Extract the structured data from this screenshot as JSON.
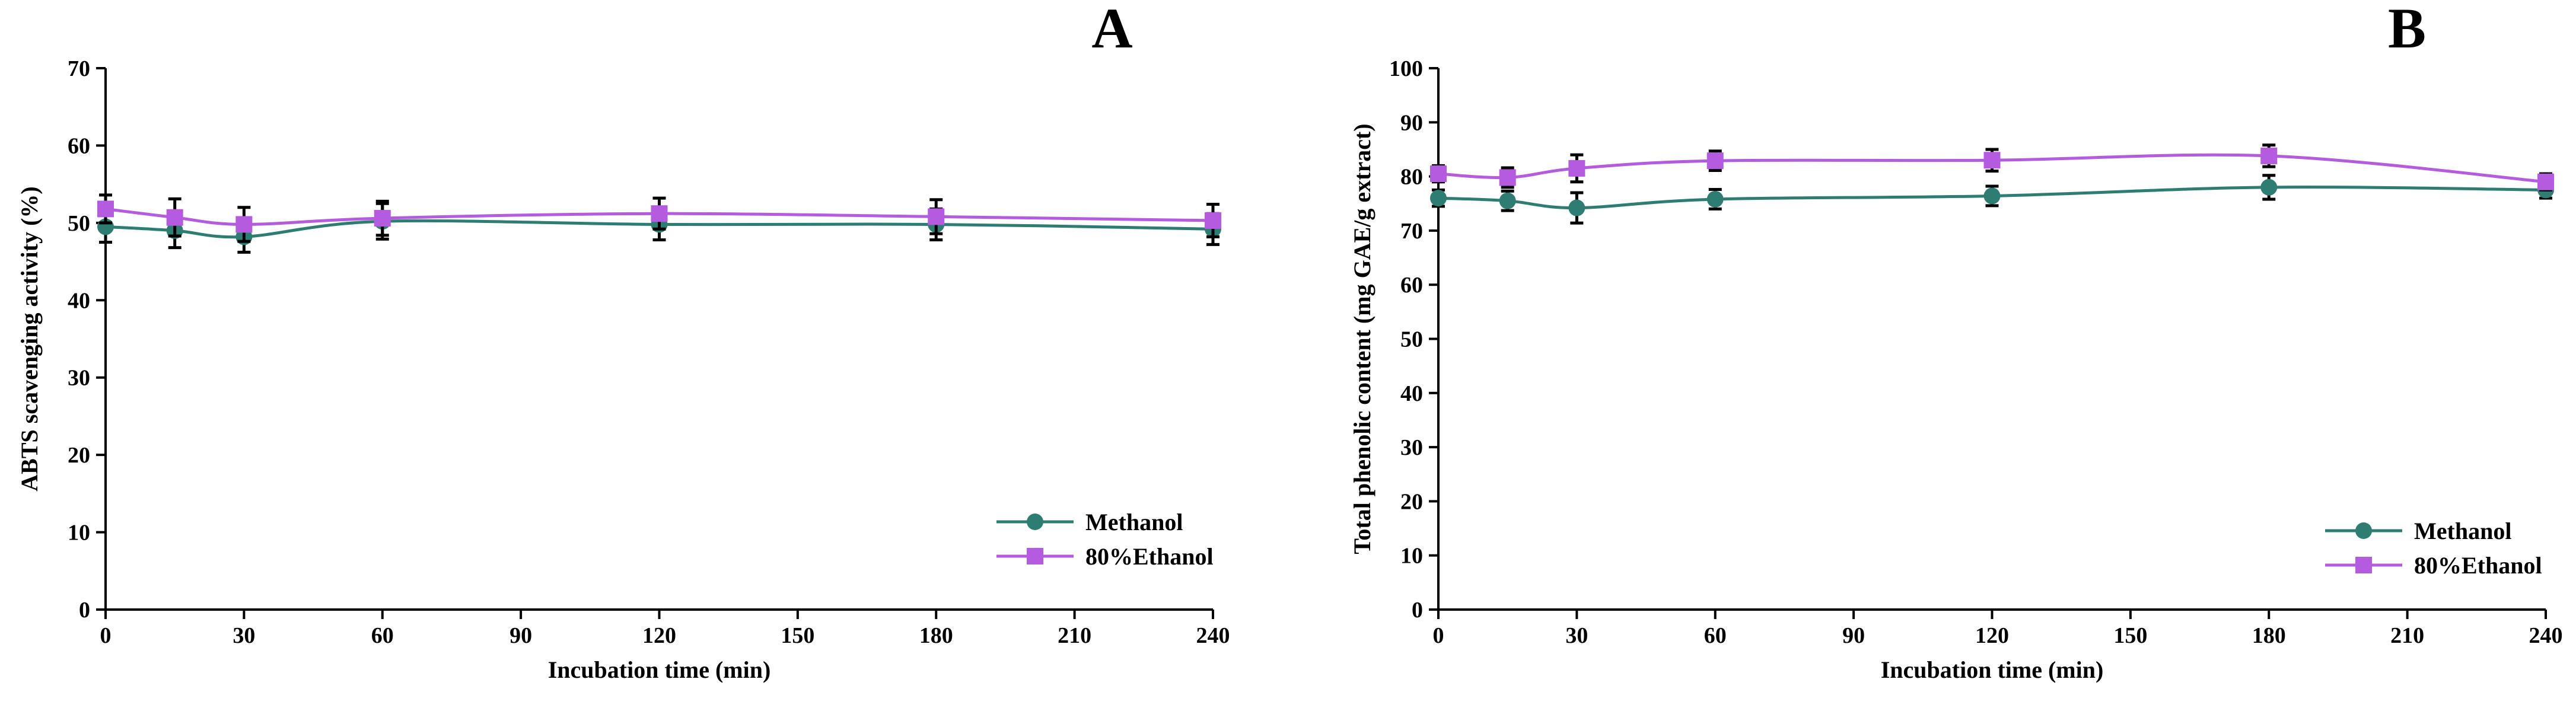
{
  "chart_data": [
    {
      "type": "line",
      "panel_label": "A",
      "title": "",
      "xlabel": "Incubation time (min)",
      "ylabel": "ABTS scavenging activity   (%)",
      "xlim": [
        0,
        240
      ],
      "ylim": [
        0,
        70
      ],
      "xticks": [
        0,
        30,
        60,
        90,
        120,
        150,
        180,
        210,
        240
      ],
      "yticks": [
        0,
        10,
        20,
        30,
        40,
        50,
        60,
        70
      ],
      "grid": false,
      "legend_position": "bottom-right",
      "x": [
        0,
        15,
        30,
        60,
        120,
        180,
        240
      ],
      "series": [
        {
          "name": "Methanol",
          "color": "#2e7d73",
          "marker": "circle",
          "values": [
            49.5,
            49.0,
            48.2,
            50.2,
            49.8,
            49.8,
            49.2
          ],
          "errors": [
            2.0,
            2.2,
            2.0,
            2.3,
            2.0,
            2.0,
            2.0
          ]
        },
        {
          "name": "80%Ethanol",
          "color": "#b45be0",
          "marker": "square",
          "values": [
            51.8,
            50.7,
            49.8,
            50.6,
            51.2,
            50.8,
            50.3
          ],
          "errors": [
            1.8,
            2.4,
            2.2,
            2.2,
            2.0,
            2.2,
            2.1
          ]
        }
      ]
    },
    {
      "type": "line",
      "panel_label": "B",
      "title": "",
      "xlabel": "Incubation time (min)",
      "ylabel": "Total phenolic content (mg GAE/g extract)",
      "xlim": [
        0,
        240
      ],
      "ylim": [
        0,
        100
      ],
      "xticks": [
        0,
        30,
        60,
        90,
        120,
        150,
        180,
        210,
        240
      ],
      "yticks": [
        0,
        10,
        20,
        30,
        40,
        50,
        60,
        70,
        80,
        90,
        100
      ],
      "grid": false,
      "legend_position": "bottom-right",
      "x": [
        0,
        15,
        30,
        60,
        120,
        180,
        240
      ],
      "series": [
        {
          "name": "Methanol",
          "color": "#2e7d73",
          "marker": "circle",
          "values": [
            76.0,
            75.5,
            74.2,
            75.8,
            76.4,
            78.0,
            77.5
          ],
          "errors": [
            1.5,
            1.8,
            2.8,
            1.8,
            1.8,
            2.2,
            1.5
          ]
        },
        {
          "name": "80%Ethanol",
          "color": "#b45be0",
          "marker": "square",
          "values": [
            80.5,
            79.8,
            81.5,
            82.9,
            83.0,
            83.8,
            79.0
          ],
          "errors": [
            1.5,
            1.8,
            2.5,
            1.8,
            2.0,
            2.0,
            1.5
          ]
        }
      ]
    }
  ]
}
